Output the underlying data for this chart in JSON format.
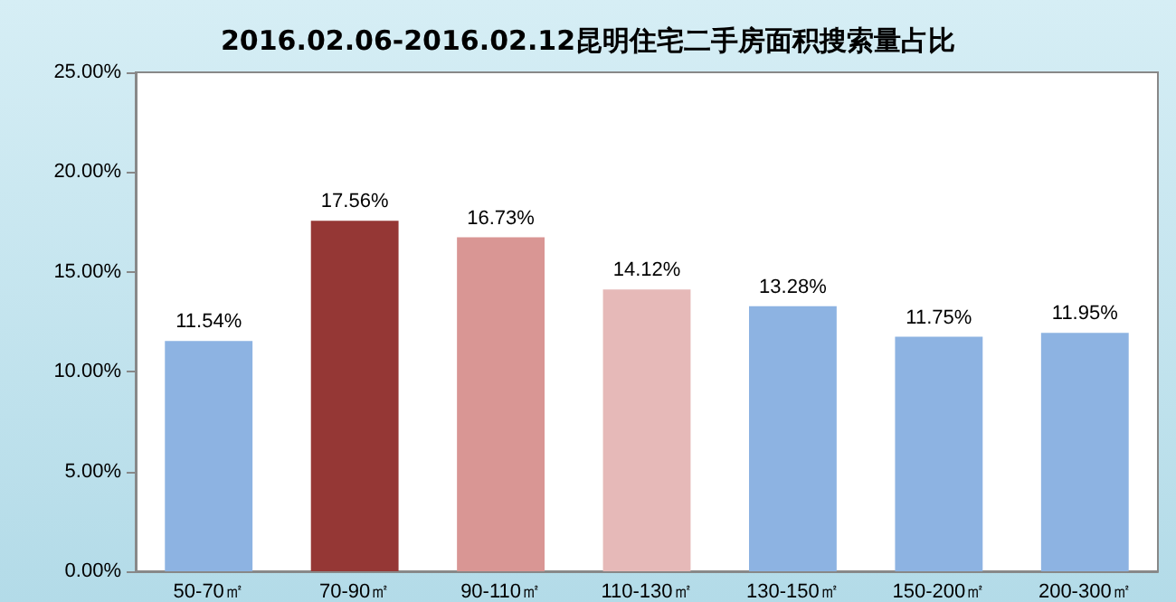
{
  "chart_data": {
    "type": "bar",
    "title": "2016.02.06-2016.02.12昆明住宅二手房面积搜索量占比",
    "categories": [
      "50-70㎡",
      "70-90㎡",
      "90-110㎡",
      "110-130㎡",
      "130-150㎡",
      "150-200㎡",
      "200-300㎡"
    ],
    "values": [
      11.54,
      17.56,
      16.73,
      14.12,
      13.28,
      11.75,
      11.95
    ],
    "colors": [
      "#8db3e2",
      "#953735",
      "#d99694",
      "#e6b9b8",
      "#8db3e2",
      "#8db3e2",
      "#8db3e2"
    ],
    "value_labels": [
      "11.54%",
      "17.56%",
      "16.73%",
      "14.12%",
      "13.28%",
      "11.75%",
      "11.95%"
    ],
    "ylim": [
      0,
      25
    ],
    "yticks": [
      {
        "value": 0,
        "label": "0.00%"
      },
      {
        "value": 5,
        "label": "5.00%"
      },
      {
        "value": 10,
        "label": "10.00%"
      },
      {
        "value": 15,
        "label": "15.00%"
      },
      {
        "value": 20,
        "label": "20.00%"
      },
      {
        "value": 25,
        "label": "25.00%"
      }
    ],
    "grid": false
  }
}
